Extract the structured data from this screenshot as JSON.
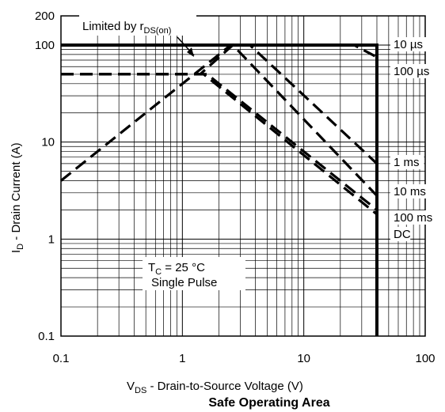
{
  "chart_data": {
    "type": "line",
    "title": "Safe Operating Area",
    "xlabel": {
      "main": "V",
      "sub": "DS",
      "rest": " - Drain-to-Source Voltage (V)"
    },
    "ylabel": {
      "main": "I",
      "sub": "D",
      "rest": " - Drain Current (A)"
    },
    "x_scale": "log",
    "y_scale": "log",
    "xlim": [
      0.1,
      100
    ],
    "ylim": [
      0.1,
      200
    ],
    "x_ticks": [
      {
        "value": 0.1,
        "label": "0.1"
      },
      {
        "value": 1,
        "label": "1"
      },
      {
        "value": 10,
        "label": "10"
      },
      {
        "value": 100,
        "label": "100"
      }
    ],
    "y_ticks": [
      {
        "value": 0.1,
        "label": "0.1"
      },
      {
        "value": 1,
        "label": "1"
      },
      {
        "value": 10,
        "label": "10"
      },
      {
        "value": 100,
        "label": "100"
      },
      {
        "value": 200,
        "label": "200"
      }
    ],
    "grid": true,
    "limit_annotation": {
      "main": "Limited by r",
      "sub": "DS(on)"
    },
    "condition_box": {
      "line1_main": "T",
      "line1_sub": "C",
      "line1_rest": " = 25 °C",
      "line2": "Single Pulse"
    },
    "series": [
      {
        "name": "10 µs",
        "style": "solid",
        "points": [
          [
            0.1,
            100
          ],
          [
            40,
            100
          ],
          [
            40,
            0.1
          ]
        ]
      },
      {
        "name": "100 µs",
        "style": "dashed",
        "points": [
          [
            0.1,
            100
          ],
          [
            26,
            100
          ],
          [
            40,
            75
          ]
        ]
      },
      {
        "name": "1 ms",
        "style": "dashed",
        "points": [
          [
            0.1,
            4
          ],
          [
            2.5,
            100
          ],
          [
            3.6,
            100
          ],
          [
            40,
            6
          ]
        ]
      },
      {
        "name": "10 ms",
        "style": "dashed",
        "points": [
          [
            0.1,
            50
          ],
          [
            1.4,
            50
          ],
          [
            2.6,
            100
          ],
          [
            40,
            2.8
          ]
        ]
      },
      {
        "name": "100 ms",
        "style": "dashed",
        "points": [
          [
            0.1,
            50
          ],
          [
            1.6,
            50
          ],
          [
            40,
            2.0
          ]
        ]
      },
      {
        "name": "DC",
        "style": "dashed",
        "points": [
          [
            0.1,
            50
          ],
          [
            1.5,
            50
          ],
          [
            40,
            1.8
          ]
        ]
      }
    ]
  }
}
